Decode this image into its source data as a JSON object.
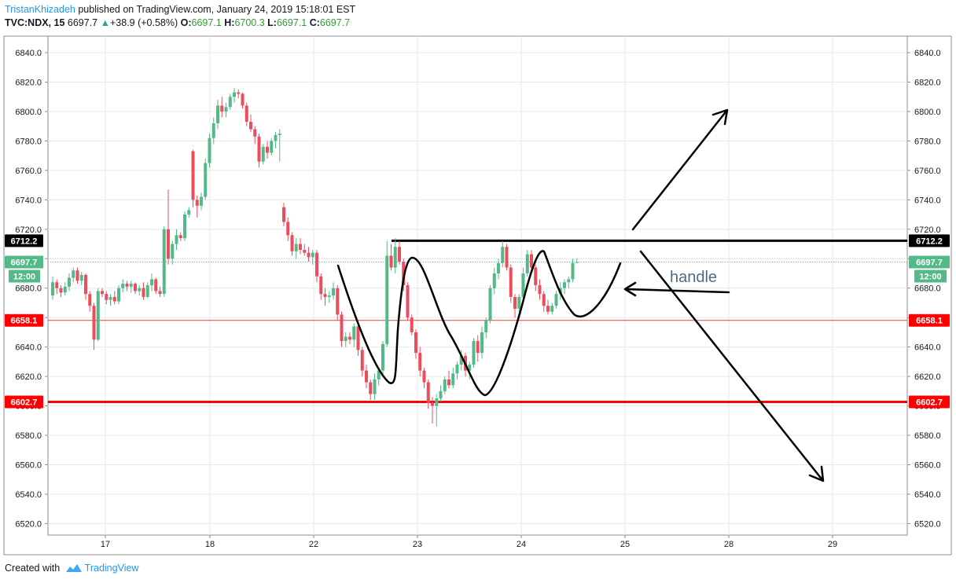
{
  "header": {
    "author": "TristanKhizadeh",
    "published": "published on TradingView.com, January 24, 2019 15:18:01 EST",
    "symbol": "TVC:NDX, 15",
    "last": "6697.7",
    "change": "+38.9 (+0.58%)",
    "o_label": "O:",
    "o_value": "6697.1",
    "h_label": "H:",
    "h_value": "6700.3",
    "l_label": "L:",
    "l_value": "6697.1",
    "c_label": "C:",
    "c_value": "6697.7"
  },
  "footer": {
    "created_with": "Created with",
    "brand": "TradingView"
  },
  "colors": {
    "up": "#53b987",
    "down": "#eb4d5c",
    "support": "#ff0000",
    "resistance": "#000000",
    "current": "#53b987"
  },
  "chart_data": {
    "type": "candlestick",
    "y_range": [
      6512,
      6850
    ],
    "y_ticks": [
      6520.0,
      6540.0,
      6560.0,
      6580.0,
      6600.0,
      6620.0,
      6640.0,
      6660.0,
      6680.0,
      6700.0,
      6720.0,
      6740.0,
      6760.0,
      6780.0,
      6800.0,
      6820.0,
      6840.0
    ],
    "x_tick_labels": [
      "17",
      "18",
      "22",
      "23",
      "24",
      "25",
      "28",
      "29"
    ],
    "grid": true,
    "price_labels": [
      {
        "value": 6712.2,
        "text": "6712.2",
        "color": "#000000"
      },
      {
        "value": 6697.7,
        "text": "6697.7",
        "color": "#53b987"
      },
      {
        "value": 6658.1,
        "text": "6658.1",
        "color": "#ff0000"
      },
      {
        "value": 6602.7,
        "text": "6602.7",
        "color": "#ff0000"
      }
    ],
    "countdown": "12:00",
    "annotation": "handle",
    "candles": [
      {
        "o": 6675,
        "h": 6688,
        "l": 6672,
        "c": 6684
      },
      {
        "o": 6684,
        "h": 6686,
        "l": 6676,
        "c": 6680
      },
      {
        "o": 6680,
        "h": 6682,
        "l": 6674,
        "c": 6677
      },
      {
        "o": 6677,
        "h": 6684,
        "l": 6675,
        "c": 6681
      },
      {
        "o": 6681,
        "h": 6690,
        "l": 6678,
        "c": 6687
      },
      {
        "o": 6687,
        "h": 6694,
        "l": 6684,
        "c": 6692
      },
      {
        "o": 6692,
        "h": 6694,
        "l": 6683,
        "c": 6685
      },
      {
        "o": 6685,
        "h": 6691,
        "l": 6682,
        "c": 6689
      },
      {
        "o": 6689,
        "h": 6690,
        "l": 6672,
        "c": 6676
      },
      {
        "o": 6676,
        "h": 6678,
        "l": 6664,
        "c": 6668
      },
      {
        "o": 6668,
        "h": 6670,
        "l": 6638,
        "c": 6645
      },
      {
        "o": 6645,
        "h": 6680,
        "l": 6644,
        "c": 6678
      },
      {
        "o": 6678,
        "h": 6680,
        "l": 6674,
        "c": 6676
      },
      {
        "o": 6676,
        "h": 6678,
        "l": 6669,
        "c": 6672
      },
      {
        "o": 6672,
        "h": 6676,
        "l": 6668,
        "c": 6674
      },
      {
        "o": 6674,
        "h": 6678,
        "l": 6669,
        "c": 6671
      },
      {
        "o": 6671,
        "h": 6682,
        "l": 6669,
        "c": 6680
      },
      {
        "o": 6680,
        "h": 6686,
        "l": 6677,
        "c": 6683
      },
      {
        "o": 6683,
        "h": 6685,
        "l": 6678,
        "c": 6681
      },
      {
        "o": 6681,
        "h": 6685,
        "l": 6677,
        "c": 6683
      },
      {
        "o": 6683,
        "h": 6684,
        "l": 6676,
        "c": 6678
      },
      {
        "o": 6678,
        "h": 6682,
        "l": 6675,
        "c": 6680
      },
      {
        "o": 6680,
        "h": 6684,
        "l": 6672,
        "c": 6674
      },
      {
        "o": 6674,
        "h": 6684,
        "l": 6673,
        "c": 6682
      },
      {
        "o": 6682,
        "h": 6690,
        "l": 6678,
        "c": 6686
      },
      {
        "o": 6686,
        "h": 6687,
        "l": 6676,
        "c": 6678
      },
      {
        "o": 6678,
        "h": 6681,
        "l": 6674,
        "c": 6676
      },
      {
        "o": 6676,
        "h": 6722,
        "l": 6674,
        "c": 6720
      },
      {
        "o": 6720,
        "h": 6747,
        "l": 6696,
        "c": 6700
      },
      {
        "o": 6700,
        "h": 6712,
        "l": 6696,
        "c": 6710
      },
      {
        "o": 6710,
        "h": 6720,
        "l": 6706,
        "c": 6716
      },
      {
        "o": 6716,
        "h": 6718,
        "l": 6712,
        "c": 6714
      },
      {
        "o": 6714,
        "h": 6732,
        "l": 6712,
        "c": 6730
      },
      {
        "o": 6730,
        "h": 6735,
        "l": 6728,
        "c": 6733
      },
      {
        "o": 6773,
        "h": 6774,
        "l": 6735,
        "c": 6740
      },
      {
        "o": 6740,
        "h": 6743,
        "l": 6728,
        "c": 6736
      },
      {
        "o": 6736,
        "h": 6745,
        "l": 6733,
        "c": 6742
      },
      {
        "o": 6742,
        "h": 6768,
        "l": 6740,
        "c": 6765
      },
      {
        "o": 6765,
        "h": 6785,
        "l": 6762,
        "c": 6782
      },
      {
        "o": 6782,
        "h": 6796,
        "l": 6778,
        "c": 6792
      },
      {
        "o": 6792,
        "h": 6808,
        "l": 6788,
        "c": 6804
      },
      {
        "o": 6804,
        "h": 6810,
        "l": 6796,
        "c": 6800
      },
      {
        "o": 6800,
        "h": 6806,
        "l": 6796,
        "c": 6803
      },
      {
        "o": 6803,
        "h": 6812,
        "l": 6801,
        "c": 6810
      },
      {
        "o": 6810,
        "h": 6816,
        "l": 6806,
        "c": 6813
      },
      {
        "o": 6813,
        "h": 6815,
        "l": 6809,
        "c": 6812
      },
      {
        "o": 6812,
        "h": 6813,
        "l": 6802,
        "c": 6804
      },
      {
        "o": 6804,
        "h": 6806,
        "l": 6790,
        "c": 6793
      },
      {
        "o": 6793,
        "h": 6798,
        "l": 6786,
        "c": 6788
      },
      {
        "o": 6788,
        "h": 6790,
        "l": 6778,
        "c": 6783
      },
      {
        "o": 6783,
        "h": 6785,
        "l": 6762,
        "c": 6766
      },
      {
        "o": 6766,
        "h": 6778,
        "l": 6764,
        "c": 6776
      },
      {
        "o": 6776,
        "h": 6780,
        "l": 6768,
        "c": 6772
      },
      {
        "o": 6772,
        "h": 6782,
        "l": 6770,
        "c": 6780
      },
      {
        "o": 6780,
        "h": 6786,
        "l": 6775,
        "c": 6784
      },
      {
        "o": 6784,
        "h": 6788,
        "l": 6766,
        "c": 6785
      },
      {
        "o": 6735,
        "h": 6738,
        "l": 6722,
        "c": 6725
      },
      {
        "o": 6725,
        "h": 6728,
        "l": 6712,
        "c": 6716
      },
      {
        "o": 6716,
        "h": 6718,
        "l": 6702,
        "c": 6705
      },
      {
        "o": 6705,
        "h": 6714,
        "l": 6700,
        "c": 6710
      },
      {
        "o": 6710,
        "h": 6714,
        "l": 6703,
        "c": 6706
      },
      {
        "o": 6706,
        "h": 6710,
        "l": 6702,
        "c": 6704
      },
      {
        "o": 6704,
        "h": 6708,
        "l": 6698,
        "c": 6701
      },
      {
        "o": 6701,
        "h": 6706,
        "l": 6696,
        "c": 6704
      },
      {
        "o": 6704,
        "h": 6706,
        "l": 6684,
        "c": 6688
      },
      {
        "o": 6688,
        "h": 6690,
        "l": 6672,
        "c": 6676
      },
      {
        "o": 6676,
        "h": 6680,
        "l": 6668,
        "c": 6674
      },
      {
        "o": 6674,
        "h": 6678,
        "l": 6670,
        "c": 6675
      },
      {
        "o": 6675,
        "h": 6684,
        "l": 6672,
        "c": 6680
      },
      {
        "o": 6680,
        "h": 6682,
        "l": 6658,
        "c": 6662
      },
      {
        "o": 6662,
        "h": 6664,
        "l": 6640,
        "c": 6644
      },
      {
        "o": 6644,
        "h": 6650,
        "l": 6640,
        "c": 6647
      },
      {
        "o": 6647,
        "h": 6650,
        "l": 6642,
        "c": 6645
      },
      {
        "o": 6645,
        "h": 6656,
        "l": 6640,
        "c": 6654
      },
      {
        "o": 6654,
        "h": 6656,
        "l": 6634,
        "c": 6638
      },
      {
        "o": 6638,
        "h": 6640,
        "l": 6620,
        "c": 6624
      },
      {
        "o": 6624,
        "h": 6628,
        "l": 6612,
        "c": 6616
      },
      {
        "o": 6616,
        "h": 6618,
        "l": 6604,
        "c": 6608
      },
      {
        "o": 6608,
        "h": 6622,
        "l": 6604,
        "c": 6618
      },
      {
        "o": 6618,
        "h": 6626,
        "l": 6614,
        "c": 6624
      },
      {
        "o": 6624,
        "h": 6644,
        "l": 6620,
        "c": 6642
      },
      {
        "o": 6642,
        "h": 6712,
        "l": 6640,
        "c": 6702
      },
      {
        "o": 6702,
        "h": 6710,
        "l": 6692,
        "c": 6694
      },
      {
        "o": 6694,
        "h": 6714,
        "l": 6690,
        "c": 6708
      },
      {
        "o": 6708,
        "h": 6712,
        "l": 6696,
        "c": 6698
      },
      {
        "o": 6698,
        "h": 6700,
        "l": 6678,
        "c": 6682
      },
      {
        "o": 6682,
        "h": 6684,
        "l": 6658,
        "c": 6660
      },
      {
        "o": 6660,
        "h": 6662,
        "l": 6648,
        "c": 6650
      },
      {
        "o": 6650,
        "h": 6652,
        "l": 6632,
        "c": 6636
      },
      {
        "o": 6636,
        "h": 6640,
        "l": 6620,
        "c": 6624
      },
      {
        "o": 6624,
        "h": 6626,
        "l": 6612,
        "c": 6616
      },
      {
        "o": 6616,
        "h": 6618,
        "l": 6598,
        "c": 6602
      },
      {
        "o": 6602,
        "h": 6606,
        "l": 6588,
        "c": 6600
      },
      {
        "o": 6600,
        "h": 6608,
        "l": 6586,
        "c": 6605
      },
      {
        "o": 6605,
        "h": 6614,
        "l": 6603,
        "c": 6610
      },
      {
        "o": 6610,
        "h": 6620,
        "l": 6608,
        "c": 6618
      },
      {
        "o": 6618,
        "h": 6624,
        "l": 6612,
        "c": 6614
      },
      {
        "o": 6614,
        "h": 6626,
        "l": 6612,
        "c": 6622
      },
      {
        "o": 6622,
        "h": 6630,
        "l": 6618,
        "c": 6628
      },
      {
        "o": 6628,
        "h": 6638,
        "l": 6624,
        "c": 6634
      },
      {
        "o": 6634,
        "h": 6636,
        "l": 6620,
        "c": 6624
      },
      {
        "o": 6624,
        "h": 6630,
        "l": 6618,
        "c": 6628
      },
      {
        "o": 6628,
        "h": 6646,
        "l": 6626,
        "c": 6644
      },
      {
        "o": 6644,
        "h": 6648,
        "l": 6630,
        "c": 6636
      },
      {
        "o": 6636,
        "h": 6654,
        "l": 6632,
        "c": 6650
      },
      {
        "o": 6650,
        "h": 6660,
        "l": 6646,
        "c": 6658
      },
      {
        "o": 6658,
        "h": 6682,
        "l": 6656,
        "c": 6680
      },
      {
        "o": 6680,
        "h": 6694,
        "l": 6676,
        "c": 6690
      },
      {
        "o": 6690,
        "h": 6700,
        "l": 6686,
        "c": 6697
      },
      {
        "o": 6697,
        "h": 6712,
        "l": 6694,
        "c": 6708
      },
      {
        "o": 6708,
        "h": 6710,
        "l": 6692,
        "c": 6694
      },
      {
        "o": 6694,
        "h": 6696,
        "l": 6670,
        "c": 6674
      },
      {
        "o": 6674,
        "h": 6676,
        "l": 6660,
        "c": 6666
      },
      {
        "o": 6666,
        "h": 6676,
        "l": 6664,
        "c": 6674
      },
      {
        "o": 6674,
        "h": 6694,
        "l": 6672,
        "c": 6690
      },
      {
        "o": 6690,
        "h": 6706,
        "l": 6688,
        "c": 6703
      },
      {
        "o": 6703,
        "h": 6706,
        "l": 6690,
        "c": 6694
      },
      {
        "o": 6694,
        "h": 6696,
        "l": 6678,
        "c": 6682
      },
      {
        "o": 6682,
        "h": 6686,
        "l": 6672,
        "c": 6676
      },
      {
        "o": 6676,
        "h": 6678,
        "l": 6664,
        "c": 6668
      },
      {
        "o": 6668,
        "h": 6672,
        "l": 6662,
        "c": 6664
      },
      {
        "o": 6664,
        "h": 6670,
        "l": 6662,
        "c": 6668
      },
      {
        "o": 6668,
        "h": 6678,
        "l": 6666,
        "c": 6676
      },
      {
        "o": 6676,
        "h": 6684,
        "l": 6672,
        "c": 6680
      },
      {
        "o": 6680,
        "h": 6686,
        "l": 6676,
        "c": 6684
      },
      {
        "o": 6684,
        "h": 6688,
        "l": 6680,
        "c": 6686
      },
      {
        "o": 6686,
        "h": 6700,
        "l": 6684,
        "c": 6697
      },
      {
        "o": 6697.1,
        "h": 6700.3,
        "l": 6697.1,
        "c": 6697.7
      }
    ]
  }
}
